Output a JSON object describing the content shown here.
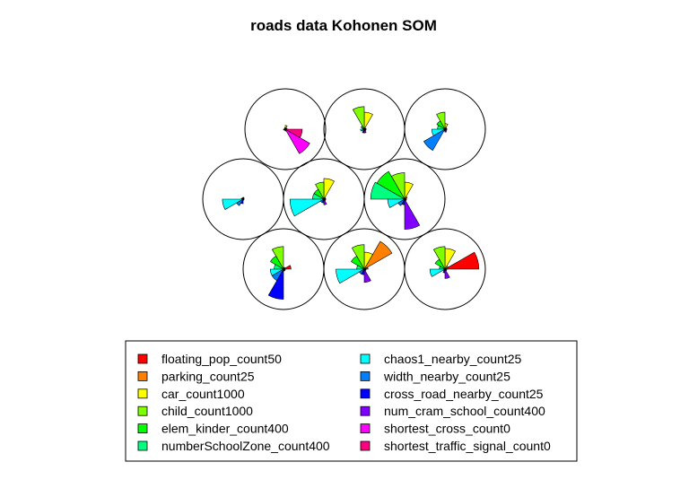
{
  "chart_data": {
    "type": "som-segments",
    "title": "roads data Kohonen SOM",
    "grid": "3x3 hexagonal",
    "variables": [
      {
        "name": "floating_pop_count50",
        "color": "#FF0000"
      },
      {
        "name": "parking_count25",
        "color": "#FF8000"
      },
      {
        "name": "car_count1000",
        "color": "#FFFF00"
      },
      {
        "name": "child_count1000",
        "color": "#80FF00"
      },
      {
        "name": "elem_kinder_count400",
        "color": "#00FF00"
      },
      {
        "name": "numberSchoolZone_count400",
        "color": "#00FF80"
      },
      {
        "name": "chaos1_nearby_count25",
        "color": "#00FFFF"
      },
      {
        "name": "width_nearby_count25",
        "color": "#0080FF"
      },
      {
        "name": "cross_road_nearby_count25",
        "color": "#0000FF"
      },
      {
        "name": "num_cram_school_count400",
        "color": "#8000FF"
      },
      {
        "name": "shortest_cross_count0",
        "color": "#FF00FF"
      },
      {
        "name": "shortest_traffic_signal_count0",
        "color": "#FF0080"
      }
    ],
    "nodes": [
      {
        "values": [
          0.05,
          0.03,
          0.1,
          0.04,
          0.03,
          0.02,
          0.05,
          0.03,
          0.03,
          0.05,
          0.75,
          0.45
        ]
      },
      {
        "values": [
          0.05,
          0.03,
          0.45,
          0.6,
          0.1,
          0.05,
          0.1,
          0.05,
          0.1,
          0.1,
          0.05,
          0.05
        ]
      },
      {
        "values": [
          0.05,
          0.05,
          0.15,
          0.45,
          0.25,
          0.2,
          0.35,
          0.65,
          0.05,
          0.08,
          0.05,
          0.05
        ]
      },
      {
        "values": [
          0.03,
          0.02,
          0.05,
          0.04,
          0.03,
          0.05,
          0.55,
          0.2,
          0.12,
          0.03,
          0.02,
          0.02
        ]
      },
      {
        "values": [
          0.05,
          0.05,
          0.55,
          0.45,
          0.3,
          0.3,
          0.9,
          0.1,
          0.1,
          0.15,
          0.05,
          0.05
        ]
      },
      {
        "values": [
          0.05,
          0.08,
          0.45,
          0.7,
          0.85,
          0.9,
          0.45,
          0.2,
          0.15,
          0.8,
          0.05,
          0.05
        ]
      },
      {
        "values": [
          0.2,
          0.05,
          0.05,
          0.6,
          0.4,
          0.25,
          0.35,
          0.35,
          0.8,
          0.05,
          0.05,
          0.05
        ]
      },
      {
        "values": [
          0.1,
          0.85,
          0.45,
          0.65,
          0.4,
          0.2,
          0.75,
          0.15,
          0.15,
          0.35,
          0.05,
          0.05
        ]
      },
      {
        "values": [
          0.9,
          0.1,
          0.55,
          0.6,
          0.3,
          0.15,
          0.4,
          0.05,
          0.1,
          0.25,
          0.05,
          0.05
        ]
      }
    ]
  }
}
